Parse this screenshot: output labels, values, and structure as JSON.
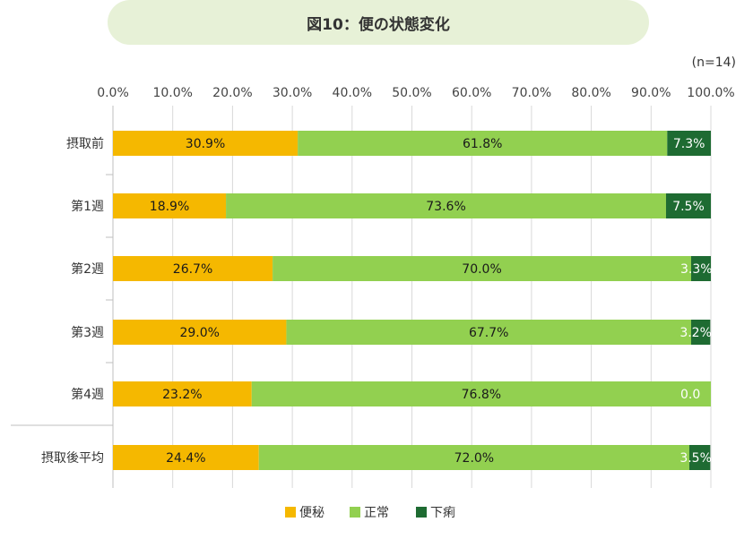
{
  "title": "図10：便の状態変化",
  "sample_note": "(n=14)",
  "colors": {
    "constipation": "#f5b800",
    "normal": "#92d050",
    "diarrhea": "#1e6b32"
  },
  "chart_data": {
    "type": "bar",
    "orientation": "horizontal",
    "stacked": "100%",
    "title": "図10：便の状態変化",
    "categories": [
      "摂取前",
      "第1週",
      "第2週",
      "第3週",
      "第4週",
      "摂取後平均"
    ],
    "series": [
      {
        "name": "便秘",
        "values": [
          30.9,
          18.9,
          26.7,
          29.0,
          23.2,
          24.4
        ]
      },
      {
        "name": "正常",
        "values": [
          61.8,
          73.6,
          70.0,
          67.7,
          76.8,
          72.0
        ]
      },
      {
        "name": "下痢",
        "values": [
          7.3,
          7.5,
          3.3,
          3.2,
          0.0,
          3.5
        ]
      }
    ],
    "data_labels": [
      [
        "30.9%",
        "61.8%",
        "7.3%"
      ],
      [
        "18.9%",
        "73.6%",
        "7.5%"
      ],
      [
        "26.7%",
        "70.0%",
        "3.3%"
      ],
      [
        "29.0%",
        "67.7%",
        "3.2%"
      ],
      [
        "23.2%",
        "76.8%",
        "0.0"
      ],
      [
        "24.4%",
        "72.0%",
        "3.5%"
      ]
    ],
    "xticks": [
      "0.0%",
      "10.0%",
      "20.0%",
      "30.0%",
      "40.0%",
      "50.0%",
      "60.0%",
      "70.0%",
      "80.0%",
      "90.0%",
      "100.0%"
    ],
    "xlim": [
      0,
      100
    ],
    "grid": true,
    "legend_position": "bottom",
    "legend": [
      {
        "label": "便秘",
        "color": "#f5b800"
      },
      {
        "label": "正常",
        "color": "#92d050"
      },
      {
        "label": "下痢",
        "color": "#1e6b32"
      }
    ]
  }
}
